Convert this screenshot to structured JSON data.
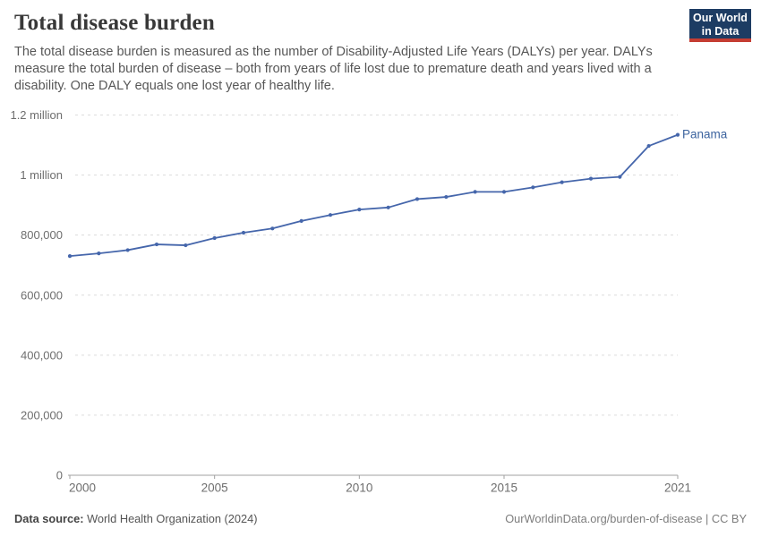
{
  "header": {
    "title": "Total disease burden",
    "subtitle": "The total disease burden is measured as the number of Disability-Adjusted Life Years (DALYs) per year. DALYs measure the total burden of disease – both from years of life lost due to premature death and years lived with a disability. One DALY equals one lost year of healthy life.",
    "logo": {
      "line1": "Our World",
      "line2": "in Data"
    }
  },
  "colors": {
    "line": "#4566ab",
    "entity_label": "#3d649f",
    "logo_bg": "#1d3c63",
    "logo_red": "#c53d33",
    "grid": "#dcdcdc",
    "axis": "#a1a1a1",
    "tick_text": "#6e6e6e"
  },
  "chart_data": {
    "type": "line",
    "title": "Total disease burden",
    "xlabel": "",
    "ylabel": "",
    "xlim": [
      2000,
      2021
    ],
    "ylim": [
      0,
      1200000
    ],
    "grid": "horizontal-dashed",
    "legend_position": "end-of-line-label",
    "x": [
      2000,
      2001,
      2002,
      2003,
      2004,
      2005,
      2006,
      2007,
      2008,
      2009,
      2010,
      2011,
      2012,
      2013,
      2014,
      2015,
      2016,
      2017,
      2018,
      2019,
      2020,
      2021
    ],
    "series": [
      {
        "name": "Panama",
        "values": [
          730000,
          739000,
          750000,
          769000,
          766000,
          790000,
          808000,
          822000,
          847000,
          867000,
          885000,
          892000,
          920000,
          927000,
          944000,
          944000,
          959000,
          976000,
          988000,
          994000,
          1097000,
          1134000
        ]
      }
    ],
    "x_ticks": [
      2000,
      2005,
      2010,
      2015,
      2021
    ],
    "y_ticks": [
      {
        "value": 0,
        "label": "0"
      },
      {
        "value": 200000,
        "label": "200,000"
      },
      {
        "value": 400000,
        "label": "400,000"
      },
      {
        "value": 600000,
        "label": "600,000"
      },
      {
        "value": 800000,
        "label": "800,000"
      },
      {
        "value": 1000000,
        "label": "1 million"
      },
      {
        "value": 1200000,
        "label": "1.2 million"
      }
    ]
  },
  "footer": {
    "source_label": "Data source:",
    "source_value": " World Health Organization (2024)",
    "credit": "OurWorldinData.org/burden-of-disease | CC BY"
  }
}
